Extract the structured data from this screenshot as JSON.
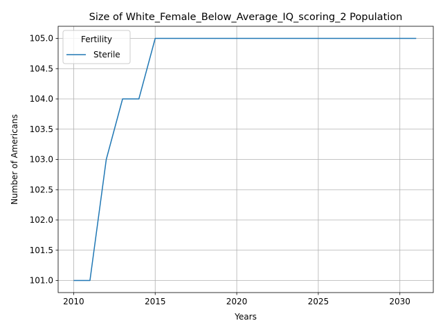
{
  "chart_data": {
    "type": "line",
    "title": "Size of White_Female_Below_Average_IQ_scoring_2 Population",
    "xlabel": "Years",
    "ylabel": "Number of Americans",
    "xlim": [
      2009.05,
      2032.05
    ],
    "ylim": [
      100.8,
      105.2
    ],
    "x_ticks": [
      2010,
      2015,
      2020,
      2025,
      2030
    ],
    "x_tick_labels": [
      "2010",
      "2015",
      "2020",
      "2025",
      "2030"
    ],
    "y_ticks": [
      101.0,
      101.5,
      102.0,
      102.5,
      103.0,
      103.5,
      104.0,
      104.5,
      105.0
    ],
    "y_tick_labels": [
      "101.0",
      "101.5",
      "102.0",
      "102.5",
      "103.0",
      "103.5",
      "104.0",
      "104.5",
      "105.0"
    ],
    "grid": true,
    "legend": {
      "title": "Fertility",
      "position": "upper-left"
    },
    "series": [
      {
        "name": "Sterile",
        "color": "#1f77b4",
        "x": [
          2010,
          2011,
          2012,
          2013,
          2014,
          2015,
          2016,
          2017,
          2018,
          2019,
          2020,
          2021,
          2022,
          2023,
          2024,
          2025,
          2026,
          2027,
          2028,
          2029,
          2030,
          2031
        ],
        "y": [
          101,
          101,
          103,
          104,
          104,
          105,
          105,
          105,
          105,
          105,
          105,
          105,
          105,
          105,
          105,
          105,
          105,
          105,
          105,
          105,
          105,
          105
        ]
      }
    ]
  }
}
